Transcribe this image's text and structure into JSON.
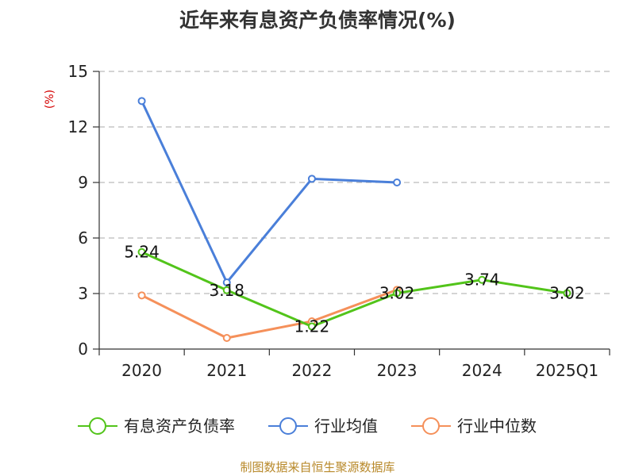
{
  "chart_data": {
    "type": "line",
    "title": "近年来有息资产负债率情况(%)",
    "ylabel": "(%)",
    "ylim": [
      0,
      15
    ],
    "yticks": [
      0,
      3,
      6,
      9,
      12,
      15
    ],
    "grid": true,
    "legend_position": "bottom",
    "categories": [
      "2020",
      "2021",
      "2022",
      "2023",
      "2024",
      "2025Q1"
    ],
    "series": [
      {
        "name": "有息资产负债率",
        "color": "#52c41a",
        "values": [
          5.24,
          3.18,
          1.22,
          3.02,
          3.74,
          3.02
        ],
        "labels": [
          "5.24",
          "3.18",
          "1.22",
          "3.02",
          "3.74",
          "3.02"
        ]
      },
      {
        "name": "行业均值",
        "color": "#4a7fd9",
        "values": [
          13.4,
          3.6,
          9.2,
          9.0,
          null,
          null
        ]
      },
      {
        "name": "行业中位数",
        "color": "#f5905a",
        "values": [
          2.9,
          0.6,
          1.5,
          3.2,
          null,
          null
        ]
      }
    ]
  },
  "source_text": "制图数据来自恒生聚源数据库"
}
